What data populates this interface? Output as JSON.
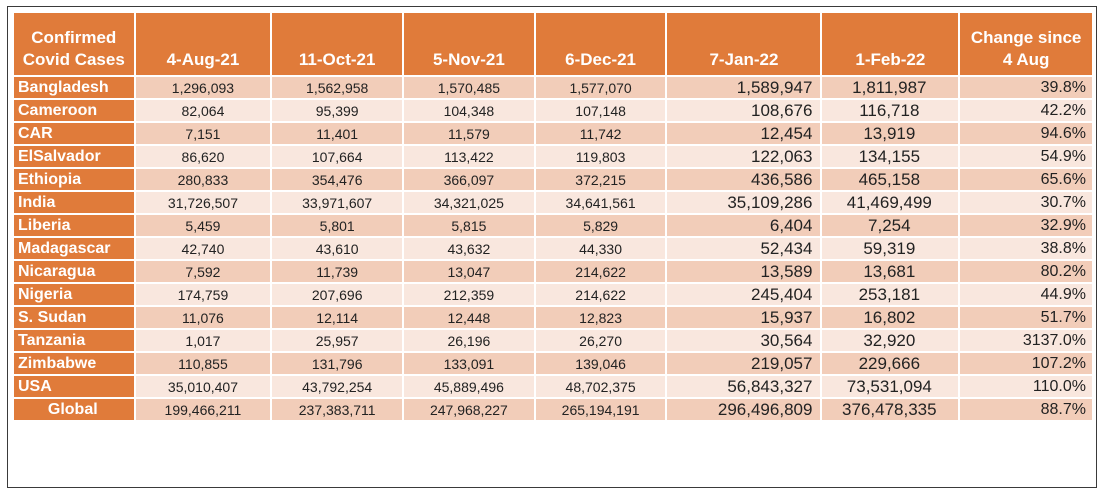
{
  "table": {
    "header_line1": "Confirmed",
    "header_line2": "Covid Cases",
    "columns": [
      "4-Aug-21",
      "11-Oct-21",
      "5-Nov-21",
      "6-Dec-21",
      "7-Jan-22",
      "1-Feb-22"
    ],
    "change_line1": "Change since",
    "change_line2": "4 Aug",
    "rows": [
      {
        "country": "Bangladesh",
        "values": [
          "1,296,093",
          "1,562,958",
          "1,570,485",
          "1,577,070",
          "1,589,947",
          "1,811,987"
        ],
        "change": "39.8%"
      },
      {
        "country": "Cameroon",
        "values": [
          "82,064",
          "95,399",
          "104,348",
          "107,148",
          "108,676",
          "116,718"
        ],
        "change": "42.2%"
      },
      {
        "country": "CAR",
        "values": [
          "7,151",
          "11,401",
          "11,579",
          "11,742",
          "12,454",
          "13,919"
        ],
        "change": "94.6%"
      },
      {
        "country": "ElSalvador",
        "values": [
          "86,620",
          "107,664",
          "113,422",
          "119,803",
          "122,063",
          "134,155"
        ],
        "change": "54.9%"
      },
      {
        "country": "Ethiopia",
        "values": [
          "280,833",
          "354,476",
          "366,097",
          "372,215",
          "436,586",
          "465,158"
        ],
        "change": "65.6%"
      },
      {
        "country": "India",
        "values": [
          "31,726,507",
          "33,971,607",
          "34,321,025",
          "34,641,561",
          "35,109,286",
          "41,469,499"
        ],
        "change": "30.7%"
      },
      {
        "country": "Liberia",
        "values": [
          "5,459",
          "5,801",
          "5,815",
          "5,829",
          "6,404",
          "7,254"
        ],
        "change": "32.9%"
      },
      {
        "country": "Madagascar",
        "values": [
          "42,740",
          "43,610",
          "43,632",
          "44,330",
          "52,434",
          "59,319"
        ],
        "change": "38.8%"
      },
      {
        "country": "Nicaragua",
        "values": [
          "7,592",
          "11,739",
          "13,047",
          "214,622",
          "13,589",
          "13,681"
        ],
        "change": "80.2%"
      },
      {
        "country": "Nigeria",
        "values": [
          "174,759",
          "207,696",
          "212,359",
          "214,622",
          "245,404",
          "253,181"
        ],
        "change": "44.9%"
      },
      {
        "country": "S. Sudan",
        "values": [
          "11,076",
          "12,114",
          "12,448",
          "12,823",
          "15,937",
          "16,802"
        ],
        "change": "51.7%"
      },
      {
        "country": "Tanzania",
        "values": [
          "1,017",
          "25,957",
          "26,196",
          "26,270",
          "30,564",
          "32,920"
        ],
        "change": "3137.0%"
      },
      {
        "country": "Zimbabwe",
        "values": [
          "110,855",
          "131,796",
          "133,091",
          "139,046",
          "219,057",
          "229,666"
        ],
        "change": "107.2%"
      },
      {
        "country": "USA",
        "values": [
          "35,010,407",
          "43,792,254",
          "45,889,496",
          "48,702,375",
          "56,843,327",
          "73,531,094"
        ],
        "change": "110.0%"
      },
      {
        "country": "Global",
        "values": [
          "199,466,211",
          "237,383,711",
          "247,968,227",
          "265,194,191",
          "296,496,809",
          "376,478,335"
        ],
        "change": "88.7%"
      }
    ]
  },
  "colors": {
    "header_bg": "#e07b3a",
    "row_dark": "#f2cdb9",
    "row_light": "#f9e7de"
  }
}
